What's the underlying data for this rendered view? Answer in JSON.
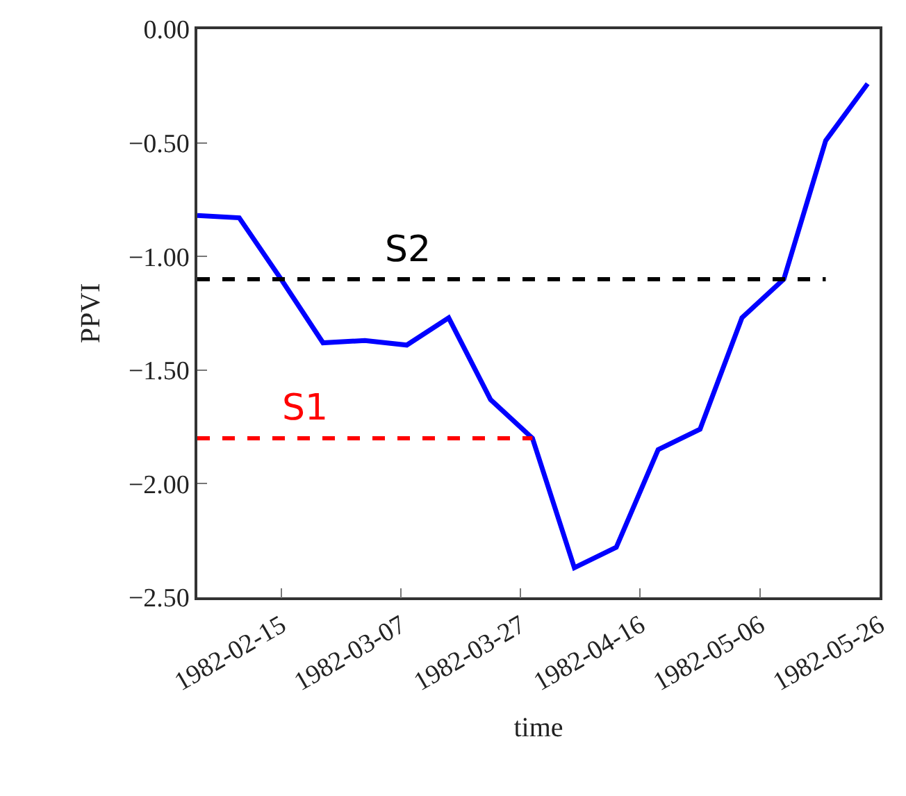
{
  "chart_data": {
    "type": "line",
    "xlabel": "time",
    "ylabel": "PPVI",
    "x": [
      "1982-02-01",
      "1982-02-08",
      "1982-02-15",
      "1982-02-22",
      "1982-03-01",
      "1982-03-08",
      "1982-03-15",
      "1982-03-22",
      "1982-03-29",
      "1982-04-05",
      "1982-04-12",
      "1982-04-19",
      "1982-04-26",
      "1982-05-03",
      "1982-05-10",
      "1982-05-17",
      "1982-05-24"
    ],
    "series": [
      {
        "color": "#0000ff",
        "values": [
          -0.82,
          -0.83,
          -1.1,
          -1.38,
          -1.37,
          -1.39,
          -1.27,
          -1.63,
          -1.8,
          -2.37,
          -2.28,
          -1.85,
          -1.76,
          -1.27,
          -1.1,
          -0.49,
          -0.24
        ]
      },
      {
        "name": "S2",
        "color": "#000000",
        "line_style": "dashed",
        "x": [
          "1982-02-01",
          "1982-05-17"
        ],
        "values": [
          -1.1,
          -1.1
        ]
      },
      {
        "name": "S1",
        "color": "#ff0000",
        "line_style": "dashed",
        "x": [
          "1982-02-01",
          "1982-03-29"
        ],
        "values": [
          -1.8,
          -1.8
        ]
      }
    ],
    "xlim": [
      "1982-02-01",
      "1982-05-26"
    ],
    "xticks": [
      "1982-02-15",
      "1982-03-07",
      "1982-03-27",
      "1982-04-16",
      "1982-05-06",
      "1982-05-26"
    ],
    "ylim": [
      -2.5,
      0.0
    ],
    "yticks": [
      {
        "value": 0.0,
        "label": "0.00"
      },
      {
        "value": -0.5,
        "label": "−0.50"
      },
      {
        "value": -1.0,
        "label": "−1.00"
      },
      {
        "value": -1.5,
        "label": "−1.50"
      },
      {
        "value": -2.0,
        "label": "−2.00"
      },
      {
        "value": -2.5,
        "label": "−2.50"
      }
    ],
    "legend": false,
    "line_style": "solid",
    "marker": "none"
  }
}
